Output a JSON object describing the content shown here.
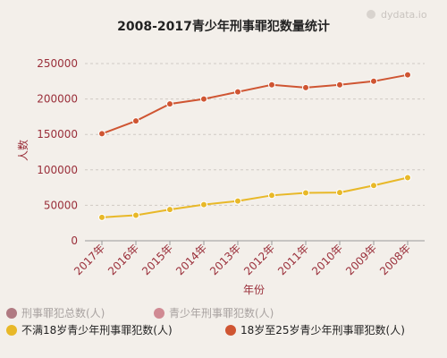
{
  "watermark": "dydata.io",
  "chart_data": {
    "type": "line",
    "title": "2008-2017青少年刑事罪犯数量统计",
    "xlabel": "年份",
    "ylabel": "人数",
    "categories": [
      "2017年",
      "2016年",
      "2015年",
      "2014年",
      "2013年",
      "2012年",
      "2011年",
      "2010年",
      "2009年",
      "2008年"
    ],
    "ylim": [
      0,
      250000
    ],
    "yticks": [
      "0",
      "50000",
      "100000",
      "150000",
      "200000",
      "250000"
    ],
    "grid": true,
    "legend_position": "bottom-left",
    "legend": [
      {
        "name": "刑事罪犯总数(人)",
        "color": "#b07a82",
        "active": false
      },
      {
        "name": "青少年刑事罪犯数(人)",
        "color": "#d08a93",
        "active": false
      },
      {
        "name": "不满18岁青少年刑事罪犯数(人)",
        "color": "#e8b828",
        "active": true
      },
      {
        "name": "18岁至25岁青少年刑事罪犯数(人)",
        "color": "#cf5532",
        "active": true
      }
    ],
    "series": [
      {
        "name": "18岁至25岁青少年刑事罪犯数(人)",
        "color": "#cf5532",
        "values": [
          151000,
          169000,
          193000,
          200000,
          210000,
          220000,
          216000,
          220000,
          225000,
          234000
        ]
      },
      {
        "name": "不满18岁青少年刑事罪犯数(人)",
        "color": "#e8b828",
        "values": [
          33000,
          36000,
          44000,
          51000,
          56000,
          64000,
          67500,
          68000,
          78000,
          89000
        ]
      }
    ]
  }
}
